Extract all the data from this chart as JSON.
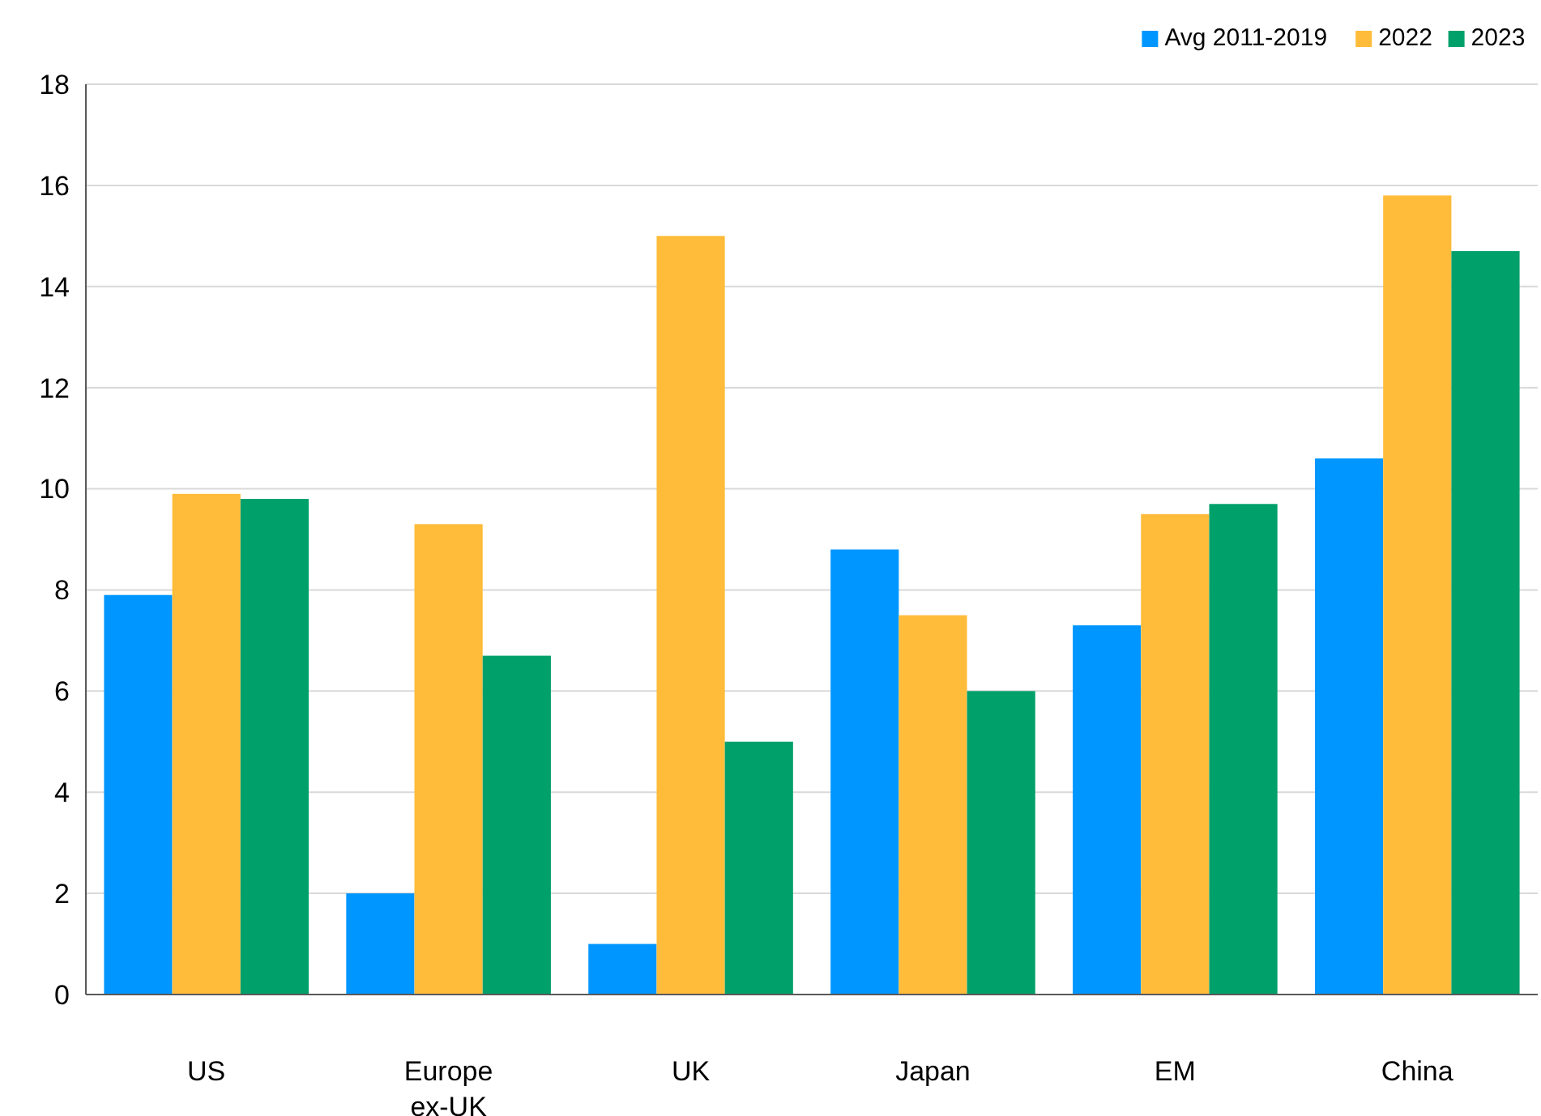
{
  "chart_data": {
    "type": "bar",
    "categories": [
      "US",
      "Europe ex-UK",
      "UK",
      "Japan",
      "EM",
      "China"
    ],
    "series": [
      {
        "name": "Avg 2011-2019",
        "color": "#0096ff",
        "values": [
          7.9,
          2.0,
          1.0,
          8.8,
          7.3,
          10.6
        ]
      },
      {
        "name": "2022",
        "color": "#ffbc3a",
        "values": [
          9.9,
          9.3,
          15.0,
          7.5,
          9.5,
          15.8
        ]
      },
      {
        "name": "2023",
        "color": "#00a06b",
        "values": [
          9.8,
          6.7,
          5.0,
          6.0,
          9.7,
          14.7
        ]
      }
    ],
    "ylim": [
      0,
      18
    ],
    "yticks": [
      0,
      2,
      4,
      6,
      8,
      10,
      12,
      14,
      16,
      18
    ],
    "grid": "y",
    "legend": "top right"
  }
}
